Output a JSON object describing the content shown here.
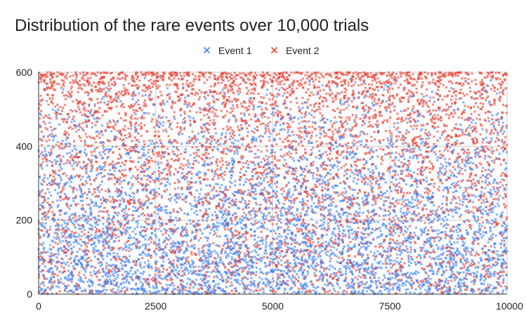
{
  "chart_data": {
    "type": "scatter",
    "title": "Distribution of the rare events over 10,000 trials",
    "xlabel": "",
    "ylabel": "",
    "xlim": [
      0,
      10000
    ],
    "ylim": [
      0,
      600
    ],
    "x_ticks": [
      0,
      2500,
      5000,
      7500,
      10000
    ],
    "y_ticks": [
      0,
      200,
      400,
      600
    ],
    "grid": true,
    "legend_position": "top",
    "marker": "x",
    "series": [
      {
        "name": "Event 1",
        "color": "#4285f4",
        "points_per_1000_x": 500,
        "y_distribution": "triangular, densest near 0, tapering to ~0 at 600"
      },
      {
        "name": "Event 2",
        "color": "#ea4335",
        "points_per_1000_x": 500,
        "y_distribution": "rising, sparse near 0, densest near 600"
      }
    ]
  }
}
